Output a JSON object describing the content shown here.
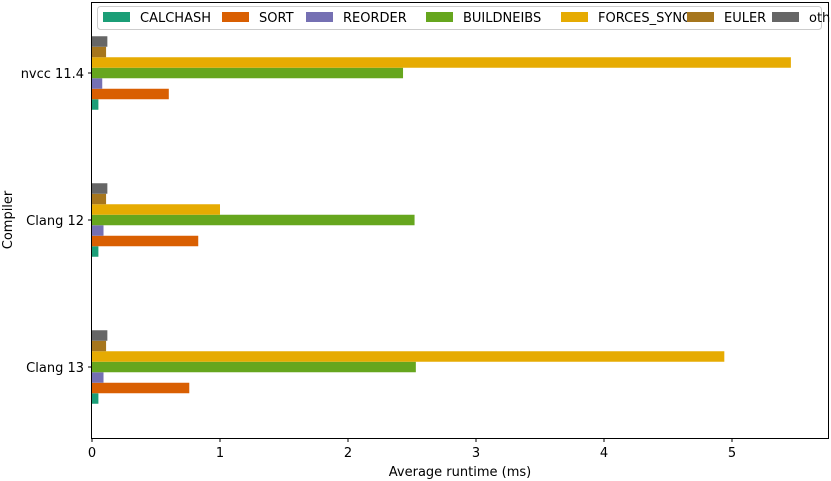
{
  "chart_data": {
    "type": "bar",
    "orientation": "horizontal",
    "categories": [
      "nvcc 11.4",
      "Clang 12",
      "Clang 13"
    ],
    "series": [
      {
        "name": "CALCHASH",
        "color": "#1b9e77",
        "values": [
          0.05,
          0.05,
          0.05
        ]
      },
      {
        "name": "SORT",
        "color": "#d95f02",
        "values": [
          0.6,
          0.83,
          0.76
        ]
      },
      {
        "name": "REORDER",
        "color": "#7570b3",
        "values": [
          0.08,
          0.09,
          0.09
        ]
      },
      {
        "name": "BUILDNEIBS",
        "color": "#66a61e",
        "values": [
          2.43,
          2.52,
          2.53
        ]
      },
      {
        "name": "FORCES_SYNC",
        "color": "#e6ab02",
        "values": [
          5.46,
          1.0,
          4.94
        ]
      },
      {
        "name": "EULER",
        "color": "#a6761d",
        "values": [
          0.11,
          0.11,
          0.11
        ]
      },
      {
        "name": "other",
        "color": "#666666",
        "values": [
          0.12,
          0.12,
          0.12
        ]
      }
    ],
    "xlabel": "Average runtime (ms)",
    "ylabel": "Compiler",
    "x_ticks": [
      0,
      1,
      2,
      3,
      4,
      5
    ],
    "xlim": [
      0,
      5.75
    ],
    "grid": false,
    "legend_position": "top"
  }
}
